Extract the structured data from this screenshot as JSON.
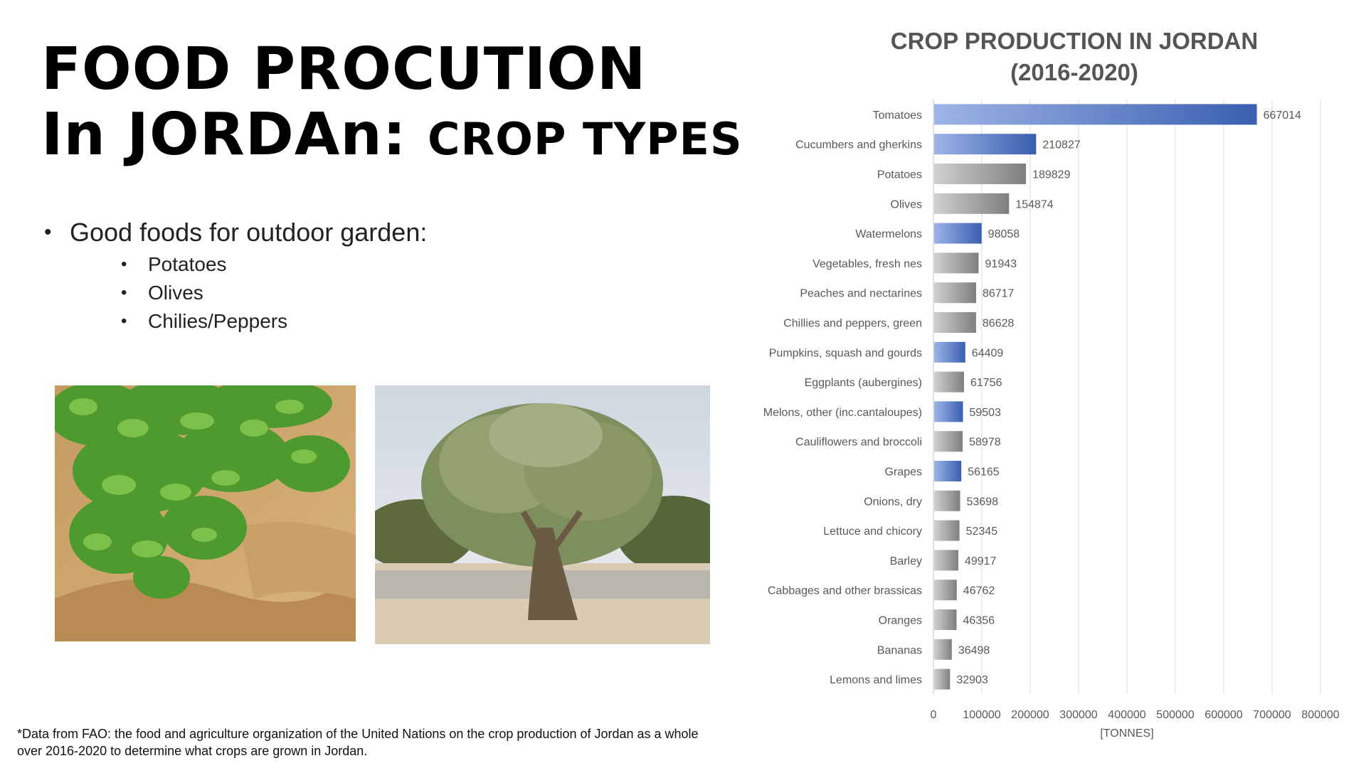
{
  "slide": {
    "title_line1": "FOOD PROCUTION",
    "title_line2a": "In JORDAn: ",
    "title_line2b": "CROP TYPES",
    "bullet_main": "Good foods for outdoor garden:",
    "bullet_items": [
      "Potatoes",
      "Olives",
      "Chilies/Peppers"
    ],
    "footnote": "*Data from FAO: the food and agriculture organization of the United Nations on the crop production of Jordan as a whole over 2016-2020 to determine what crops are grown in Jordan."
  },
  "chart_data": {
    "type": "bar",
    "orientation": "horizontal",
    "title": "CROP PRODUCTION IN JORDAN (2016-2020)",
    "xlabel": "[TONNES]",
    "ylabel": "",
    "xlim": [
      0,
      800000
    ],
    "xticks": [
      0,
      100000,
      200000,
      300000,
      400000,
      500000,
      600000,
      700000,
      800000
    ],
    "grid": true,
    "legend": "none",
    "data_labels": true,
    "categories": [
      "Tomatoes",
      "Cucumbers and gherkins",
      "Potatoes",
      "Olives",
      "Watermelons",
      "Vegetables, fresh nes",
      "Peaches and nectarines",
      "Chillies and peppers, green",
      "Pumpkins, squash and gourds",
      "Eggplants (aubergines)",
      "Melons, other (inc.cantaloupes)",
      "Cauliflowers and broccoli",
      "Grapes",
      "Onions, dry",
      "Lettuce and chicory",
      "Barley",
      "Cabbages and other brassicas",
      "Oranges",
      "Bananas",
      "Lemons and limes"
    ],
    "values": [
      667014,
      210827,
      189829,
      154874,
      98058,
      91943,
      86717,
      86628,
      64409,
      61756,
      59503,
      58978,
      56165,
      53698,
      52345,
      49917,
      46762,
      46356,
      36498,
      32903
    ],
    "bar_colors": [
      "blue",
      "blue",
      "gray",
      "gray",
      "blue",
      "gray",
      "gray",
      "gray",
      "blue",
      "gray",
      "blue",
      "gray",
      "blue",
      "gray",
      "gray",
      "gray",
      "gray",
      "gray",
      "gray",
      "gray"
    ],
    "colors": {
      "blue": "#3a5fb0",
      "blue_light": "#9db4e6",
      "gray": "#7f7f7f",
      "gray_light": "#d0d0d0",
      "grid": "#d9d9d9",
      "text": "#595959"
    }
  }
}
